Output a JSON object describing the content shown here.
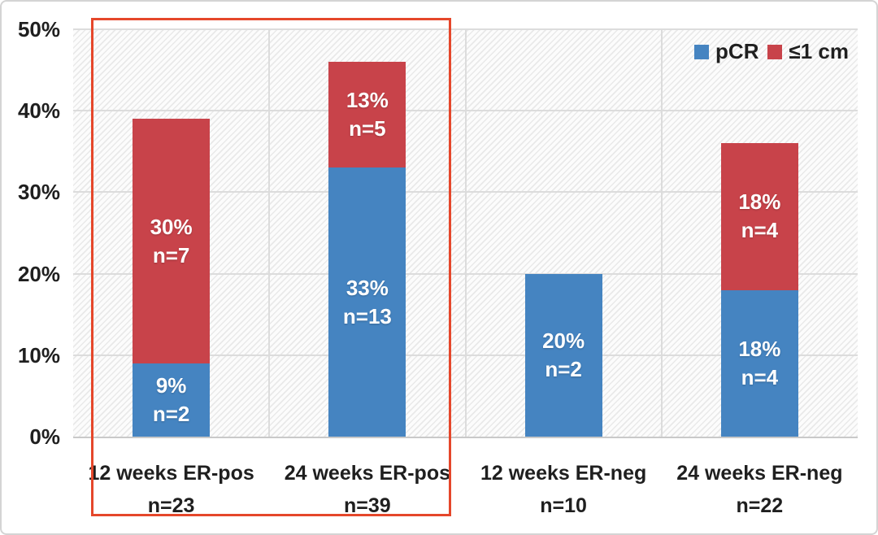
{
  "chart_data": {
    "type": "bar",
    "stacked": true,
    "title": "",
    "xlabel": "",
    "ylabel": "",
    "ylim": [
      0,
      50
    ],
    "ytick_step": 10,
    "yticks": [
      "0%",
      "10%",
      "20%",
      "30%",
      "40%",
      "50%"
    ],
    "grid": true,
    "legend_position": "top-right",
    "categories": [
      "12 weeks ER-pos",
      "24 weeks ER-pos",
      "12 weeks ER-neg",
      "24 weeks ER-neg"
    ],
    "category_counts": [
      "n=23",
      "n=39",
      "n=10",
      "n=22"
    ],
    "series": [
      {
        "name": "pCR",
        "color": "#4584c1",
        "values": [
          9,
          33,
          20,
          18
        ],
        "value_labels": [
          "9%",
          "33%",
          "20%",
          "18%"
        ],
        "count_labels": [
          "n=2",
          "n=13",
          "n=2",
          "n=4"
        ]
      },
      {
        "name": "≤1 cm",
        "color": "#c8434a",
        "values": [
          30,
          13,
          0,
          18
        ],
        "value_labels": [
          "30%",
          "13%",
          "",
          "18%"
        ],
        "count_labels": [
          "n=7",
          "n=5",
          "",
          "n=4"
        ]
      }
    ],
    "highlight_box": {
      "color": "#e5472b",
      "category_range": [
        0,
        1
      ],
      "description": "red outline around ER-pos bars and their axis labels"
    },
    "colors": {
      "gridline": "#dcdcdc",
      "axis_text": "#1f1f1f",
      "bar_label_text": "#ffffff",
      "figure_border": "#d4d4d4"
    }
  }
}
